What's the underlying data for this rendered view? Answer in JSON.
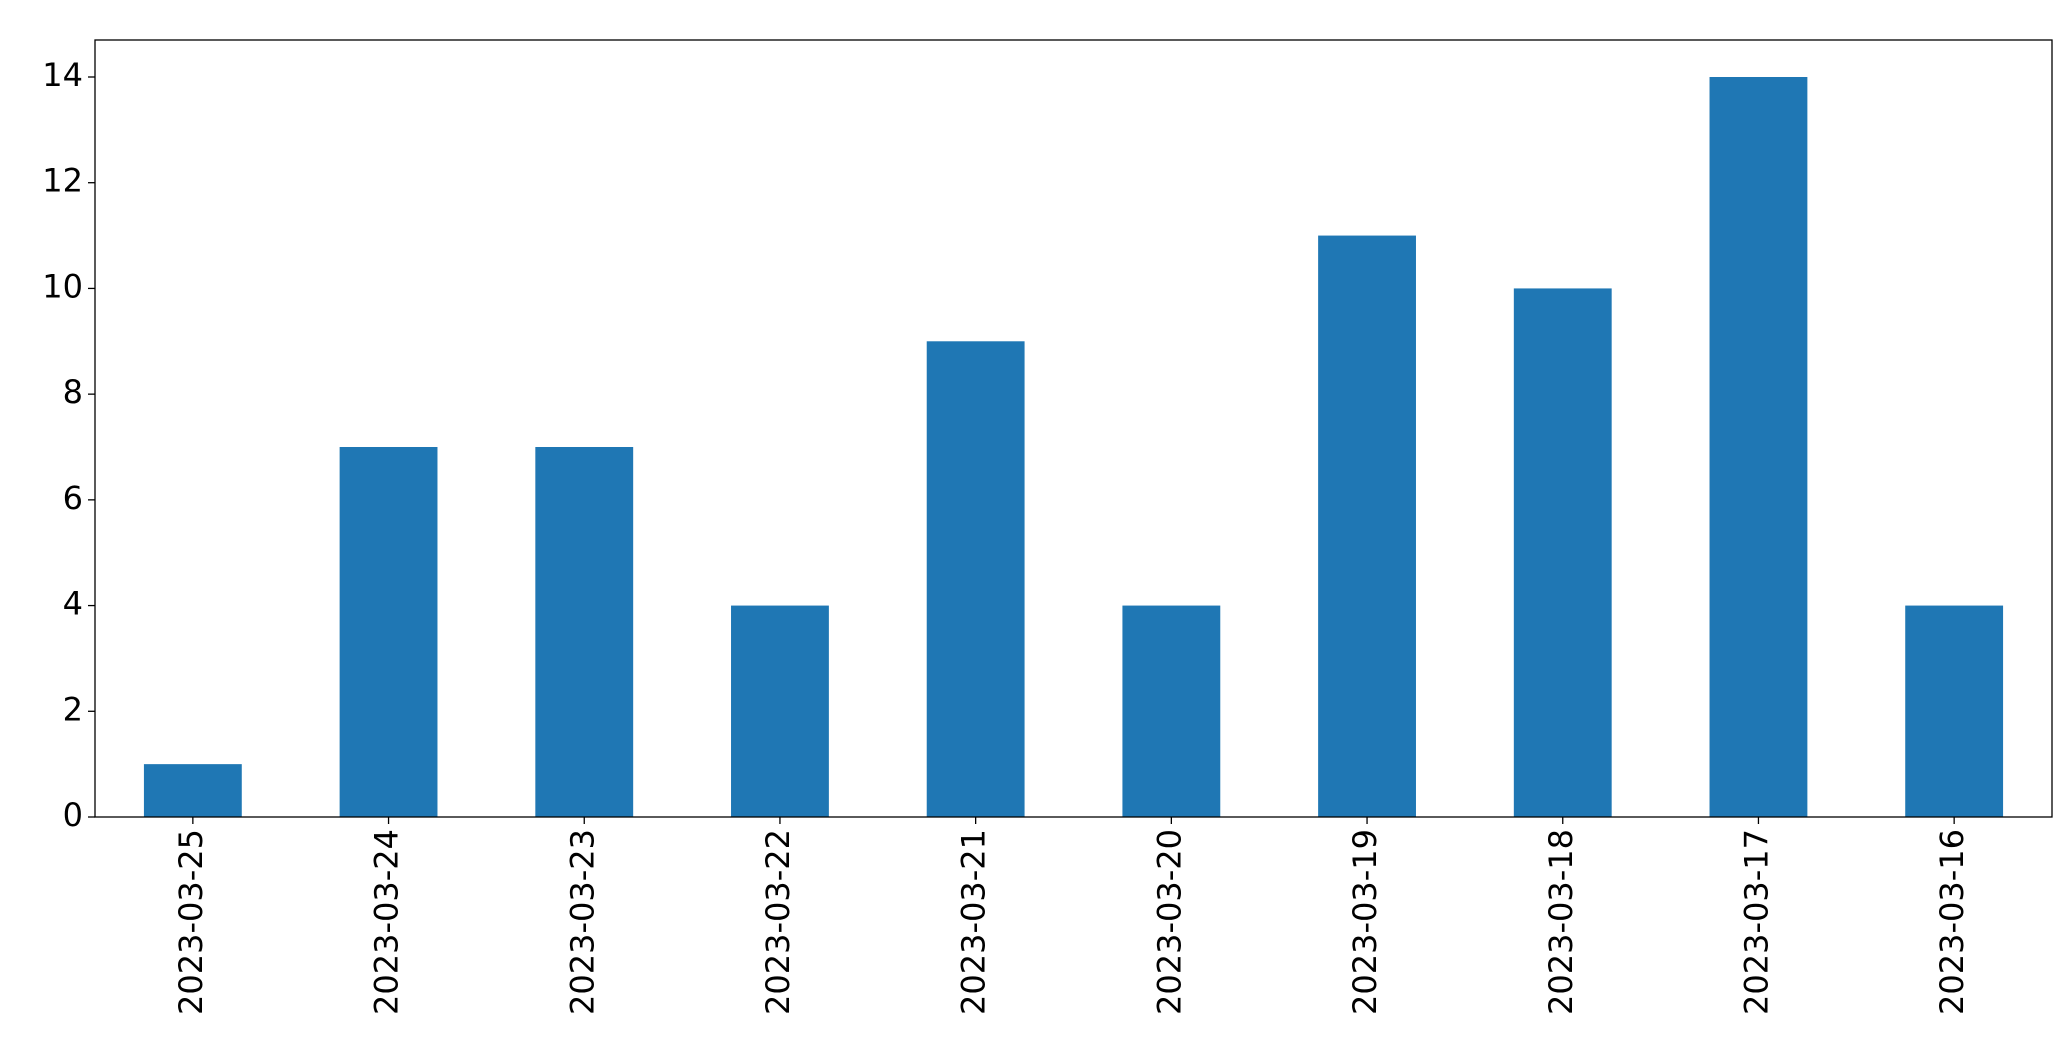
{
  "chart_data": {
    "type": "bar",
    "categories": [
      "2023-03-25",
      "2023-03-24",
      "2023-03-23",
      "2023-03-22",
      "2023-03-21",
      "2023-03-20",
      "2023-03-19",
      "2023-03-18",
      "2023-03-17",
      "2023-03-16"
    ],
    "values": [
      1,
      7,
      7,
      4,
      9,
      4,
      11,
      10,
      14,
      4
    ],
    "color": "#1f77b4",
    "ylim": [
      0,
      14.7
    ],
    "yticks": [
      0,
      2,
      4,
      6,
      8,
      10,
      12,
      14
    ],
    "grid": false
  }
}
